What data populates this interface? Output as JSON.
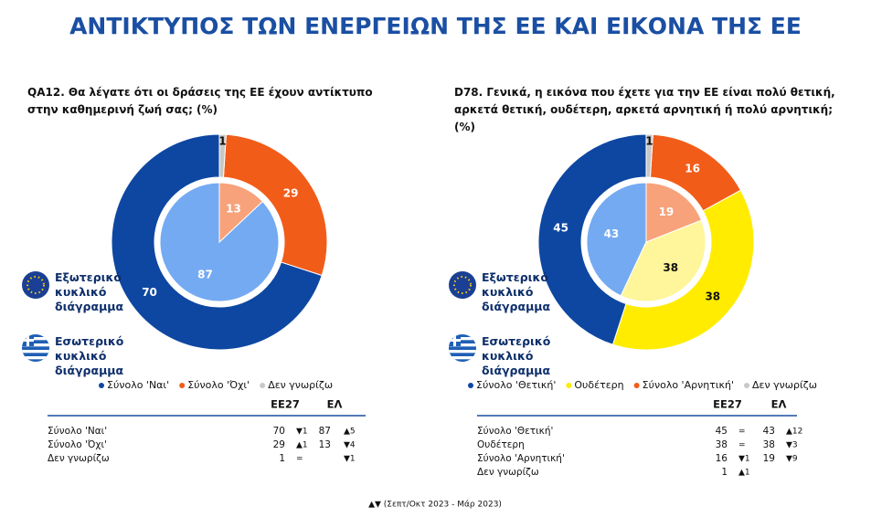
{
  "title": "ΑΝΤΙΚΤΥΠΟΣ ΤΩΝ ΕΝΕΡΓΕΙΩΝ ΤΗΣ ΕΕ ΚΑΙ ΕΙΚΟΝΑ ΤΗΣ ΕΕ",
  "chart_data": [
    {
      "type": "pie",
      "title": "QA12. Θα λέγατε ότι οι δράσεις της ΕΕ έχουν αντίκτυπο στην καθημερινή ζωή σας; (%)",
      "categories": [
        "Σύνολο 'Ναι'",
        "Σύνολο 'Όχι'",
        "Δεν γνωρίζω"
      ],
      "rings": [
        {
          "name": "Εξωτερικό κυκλικό διάγραμμα",
          "values": [
            70,
            29,
            1
          ],
          "colors": [
            "#0e47a1",
            "#f25c19",
            "#c8c8c8"
          ]
        },
        {
          "name": "Εσωτερικό κυκλικό διάγραμμα",
          "values": [
            87,
            13,
            null
          ],
          "colors": [
            "#74aaf2",
            "#f7a27a",
            "#dddddd"
          ]
        }
      ]
    },
    {
      "type": "pie",
      "title": "D78. Γενικά, η εικόνα που έχετε για την ΕΕ είναι πολύ θετική, αρκετά θετική, ουδέτερη, αρκετά αρνητική ή πολύ αρνητική; (%)",
      "categories": [
        "Σύνολο 'Θετική'",
        "Ουδέτερη",
        "Σύνολο 'Αρνητική'",
        "Δεν γνωρίζω"
      ],
      "rings": [
        {
          "name": "Εξωτερικό κυκλικό διάγραμμα",
          "values": [
            45,
            38,
            16,
            1
          ],
          "colors": [
            "#0e47a1",
            "#ffec00",
            "#f25c19",
            "#c8c8c8"
          ]
        },
        {
          "name": "Εσωτερικό κυκλικό διάγραμμα",
          "values": [
            43,
            38,
            19,
            null
          ],
          "colors": [
            "#74aaf2",
            "#fff59a",
            "#f7a27a",
            "#dddddd"
          ]
        }
      ]
    }
  ],
  "tables": [
    {
      "columns": [
        "EE27",
        "ΕΛ"
      ],
      "rows": [
        [
          "Σύνολο 'Ναι'",
          70,
          "▼1",
          87,
          "▲5"
        ],
        [
          "Σύνολο 'Όχι'",
          29,
          "▲1",
          13,
          "▼4"
        ],
        [
          "Δεν γνωρίζω",
          1,
          "=",
          null,
          "▼1"
        ]
      ]
    },
    {
      "columns": [
        "EE27",
        "ΕΛ"
      ],
      "rows": [
        [
          "Σύνολο 'Θετική'",
          45,
          "=",
          43,
          "▲12"
        ],
        [
          "Ουδέτερη",
          38,
          "=",
          38,
          "▼3"
        ],
        [
          "Σύνολο 'Αρνητική'",
          16,
          "▼1",
          19,
          "▼9"
        ],
        [
          "Δεν γνωρίζω",
          1,
          "▲1",
          null,
          null
        ]
      ]
    }
  ],
  "footnote": "▲▼ (Σεπτ/Οκτ 2023 - Μάρ 2023)"
}
